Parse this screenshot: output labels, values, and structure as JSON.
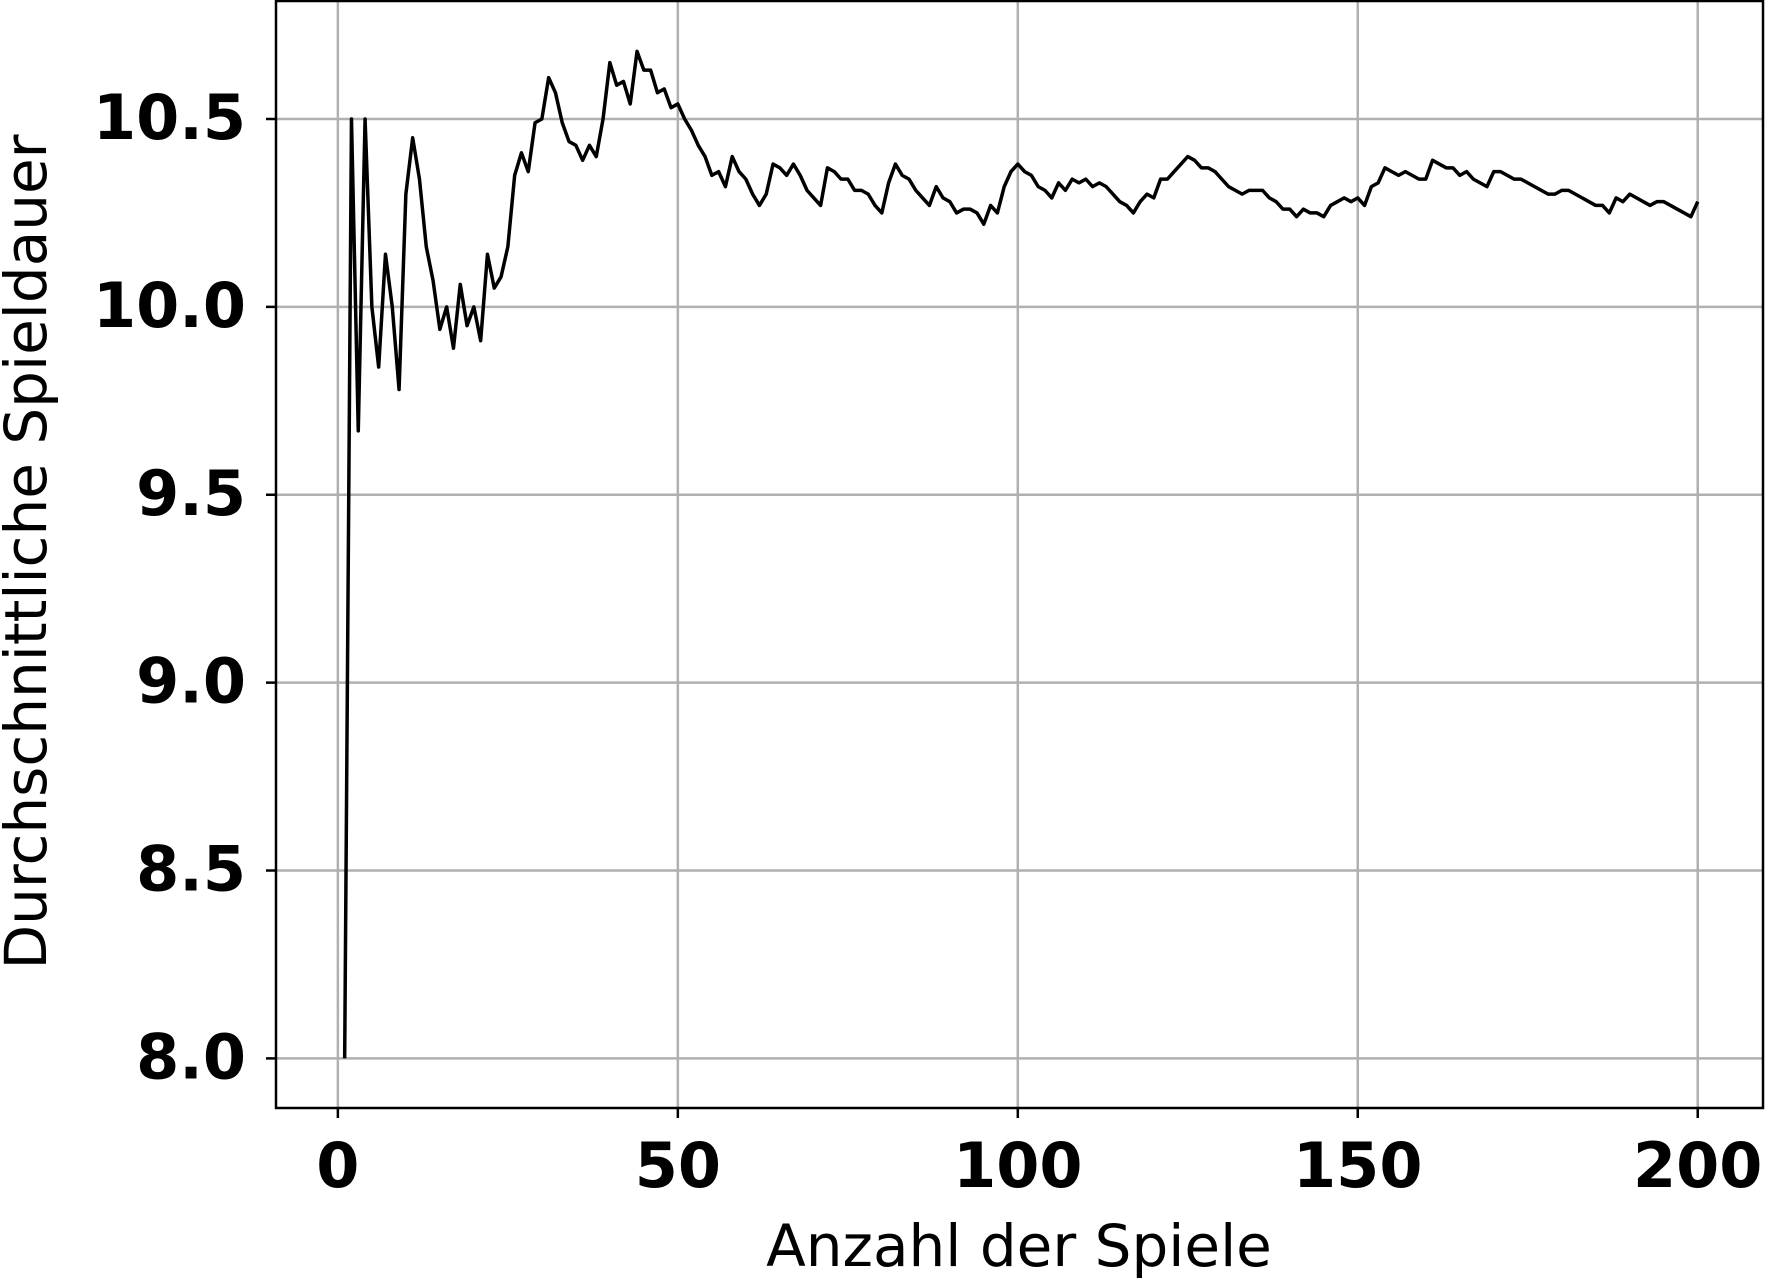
{
  "chart_data": {
    "type": "line",
    "x_label": "Anzahl der Spiele",
    "y_label": "Durchschnittliche Spieldauer",
    "x": [
      1,
      2,
      3,
      4,
      5,
      6,
      7,
      8,
      9,
      10,
      11,
      12,
      13,
      14,
      15,
      16,
      17,
      18,
      19,
      20,
      21,
      22,
      23,
      24,
      25,
      26,
      27,
      28,
      29,
      30,
      31,
      32,
      33,
      34,
      35,
      36,
      37,
      38,
      39,
      40,
      41,
      42,
      43,
      44,
      45,
      46,
      47,
      48,
      49,
      50,
      51,
      52,
      53,
      54,
      55,
      56,
      57,
      58,
      59,
      60,
      61,
      62,
      63,
      64,
      65,
      66,
      67,
      68,
      69,
      70,
      71,
      72,
      73,
      74,
      75,
      76,
      77,
      78,
      79,
      80,
      81,
      82,
      83,
      84,
      85,
      86,
      87,
      88,
      89,
      90,
      91,
      92,
      93,
      94,
      95,
      96,
      97,
      98,
      99,
      100,
      101,
      102,
      103,
      104,
      105,
      106,
      107,
      108,
      109,
      110,
      111,
      112,
      113,
      114,
      115,
      116,
      117,
      118,
      119,
      120,
      121,
      122,
      123,
      124,
      125,
      126,
      127,
      128,
      129,
      130,
      131,
      132,
      133,
      134,
      135,
      136,
      137,
      138,
      139,
      140,
      141,
      142,
      143,
      144,
      145,
      146,
      147,
      148,
      149,
      150,
      151,
      152,
      153,
      154,
      155,
      156,
      157,
      158,
      159,
      160,
      161,
      162,
      163,
      164,
      165,
      166,
      167,
      168,
      169,
      170,
      171,
      172,
      173,
      174,
      175,
      176,
      177,
      178,
      179,
      180,
      181,
      182,
      183,
      184,
      185,
      186,
      187,
      188,
      189,
      190,
      191,
      192,
      193,
      194,
      195,
      196,
      197,
      198,
      199,
      200
    ],
    "series": [
      {
        "color": "#000000",
        "values": [
          8.0,
          10.5,
          9.67,
          10.5,
          10.0,
          9.84,
          10.14,
          10.0,
          9.78,
          10.3,
          10.45,
          10.34,
          10.16,
          10.07,
          9.94,
          10.0,
          9.89,
          10.06,
          9.95,
          10.0,
          9.91,
          10.14,
          10.05,
          10.08,
          10.16,
          10.35,
          10.41,
          10.36,
          10.49,
          10.5,
          10.61,
          10.57,
          10.49,
          10.44,
          10.43,
          10.39,
          10.43,
          10.4,
          10.5,
          10.65,
          10.59,
          10.6,
          10.54,
          10.68,
          10.63,
          10.63,
          10.57,
          10.58,
          10.53,
          10.54,
          10.5,
          10.47,
          10.43,
          10.4,
          10.35,
          10.36,
          10.32,
          10.4,
          10.36,
          10.34,
          10.3,
          10.27,
          10.3,
          10.38,
          10.37,
          10.35,
          10.38,
          10.35,
          10.31,
          10.29,
          10.27,
          10.37,
          10.36,
          10.34,
          10.34,
          10.31,
          10.31,
          10.3,
          10.27,
          10.25,
          10.33,
          10.38,
          10.35,
          10.34,
          10.31,
          10.29,
          10.27,
          10.32,
          10.29,
          10.28,
          10.25,
          10.26,
          10.26,
          10.25,
          10.22,
          10.27,
          10.25,
          10.32,
          10.36,
          10.38,
          10.36,
          10.35,
          10.32,
          10.31,
          10.29,
          10.33,
          10.31,
          10.34,
          10.33,
          10.34,
          10.32,
          10.33,
          10.32,
          10.3,
          10.28,
          10.27,
          10.25,
          10.28,
          10.3,
          10.29,
          10.34,
          10.34,
          10.36,
          10.38,
          10.4,
          10.39,
          10.37,
          10.37,
          10.36,
          10.34,
          10.32,
          10.31,
          10.3,
          10.31,
          10.31,
          10.31,
          10.29,
          10.28,
          10.26,
          10.26,
          10.24,
          10.26,
          10.25,
          10.25,
          10.24,
          10.27,
          10.28,
          10.29,
          10.28,
          10.29,
          10.27,
          10.32,
          10.33,
          10.37,
          10.36,
          10.35,
          10.36,
          10.35,
          10.34,
          10.34,
          10.39,
          10.38,
          10.37,
          10.37,
          10.35,
          10.36,
          10.34,
          10.33,
          10.32,
          10.36,
          10.36,
          10.35,
          10.34,
          10.34,
          10.33,
          10.32,
          10.31,
          10.3,
          10.3,
          10.31,
          10.31,
          10.3,
          10.29,
          10.28,
          10.27,
          10.27,
          10.25,
          10.29,
          10.28,
          10.3,
          10.29,
          10.28,
          10.27,
          10.28,
          10.28,
          10.27,
          10.26,
          10.25,
          10.24,
          10.28
        ]
      }
    ],
    "xlim": [
      -9.1,
      209.6
    ],
    "ylim": [
      7.868,
      10.814
    ],
    "xticks": [
      0,
      50,
      100,
      150,
      200
    ],
    "yticks": [
      {
        "value": 8,
        "label": "8.0"
      },
      8.5,
      {
        "value": 9,
        "label": "9.0"
      },
      9.5,
      {
        "value": 10,
        "label": "10.0"
      },
      10.5
    ],
    "grid": true
  }
}
